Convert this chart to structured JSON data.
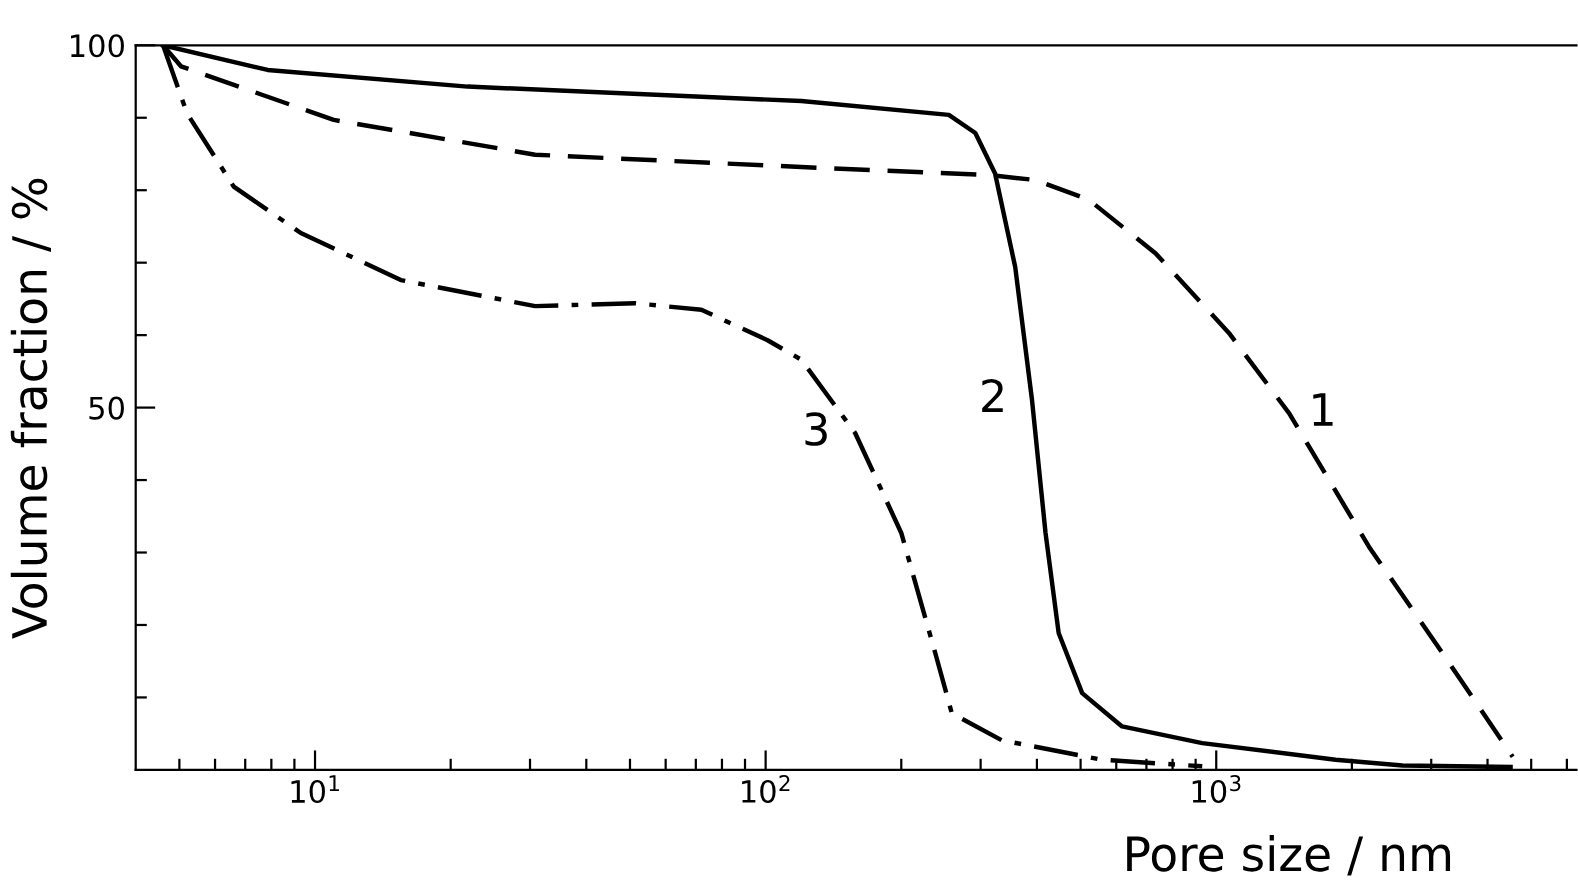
{
  "chart_data": {
    "type": "line",
    "xlabel": "Pore size / nm",
    "ylabel": "Volume fraction / %",
    "log": "x",
    "xlim": [
      4,
      6300
    ],
    "ylim": [
      0,
      100
    ],
    "xticks": [
      {
        "value": 5,
        "label": null
      },
      {
        "value": 6,
        "label": null
      },
      {
        "value": 7,
        "label": null
      },
      {
        "value": 8,
        "label": null
      },
      {
        "value": 9,
        "label": null
      },
      {
        "value": 10,
        "label": "10$^{1}$"
      },
      {
        "value": 20,
        "label": null
      },
      {
        "value": 30,
        "label": null
      },
      {
        "value": 40,
        "label": null
      },
      {
        "value": 50,
        "label": null
      },
      {
        "value": 60,
        "label": null
      },
      {
        "value": 70,
        "label": null
      },
      {
        "value": 80,
        "label": null
      },
      {
        "value": 90,
        "label": null
      },
      {
        "value": 100,
        "label": "10$^{2}$"
      },
      {
        "value": 200,
        "label": null
      },
      {
        "value": 300,
        "label": null
      },
      {
        "value": 400,
        "label": null
      },
      {
        "value": 500,
        "label": null
      },
      {
        "value": 600,
        "label": null
      },
      {
        "value": 700,
        "label": null
      },
      {
        "value": 800,
        "label": null
      },
      {
        "value": 900,
        "label": null
      },
      {
        "value": 1000,
        "label": "10$^{3}$"
      },
      {
        "value": 2000,
        "label": null
      },
      {
        "value": 3000,
        "label": null
      },
      {
        "value": 4000,
        "label": null
      },
      {
        "value": 5000,
        "label": null
      },
      {
        "value": 6000,
        "label": null
      }
    ],
    "yticks": [
      {
        "value": 10,
        "label": null
      },
      {
        "value": 20,
        "label": null
      },
      {
        "value": 30,
        "label": null
      },
      {
        "value": 40,
        "label": null
      },
      50,
      {
        "value": 60,
        "label": null
      },
      {
        "value": 70,
        "label": null
      },
      {
        "value": 80,
        "label": null
      },
      {
        "value": 90,
        "label": null
      },
      100
    ],
    "grid": false,
    "legend": false,
    "marker": "none",
    "series": [
      {
        "name": "1",
        "color": "#000000",
        "line_style": "dashed",
        "x": [
          4.6,
          5.04,
          11,
          30.8,
          120,
          313,
          397,
          521,
          733,
          1067,
          1452,
          2182,
          3180,
          4550
        ],
        "values": [
          100,
          97.1,
          89.7,
          84.9,
          83.2,
          82.1,
          81.4,
          78.7,
          71.3,
          60.3,
          49.2,
          30.8,
          16.1,
          1.8
        ]
      },
      {
        "name": "2",
        "color": "#000000",
        "line_style": "solid",
        "x": [
          4.6,
          7.85,
          21.8,
          120,
          255,
          292,
          323,
          358,
          390,
          418,
          447,
          504,
          618,
          931,
          1840,
          2590,
          4500
        ],
        "values": [
          100,
          96.6,
          94.3,
          92.3,
          90.4,
          87.9,
          82.3,
          69.4,
          51.1,
          32.7,
          18.9,
          10.6,
          6.0,
          3.7,
          1.4,
          0.6,
          0.4
        ]
      },
      {
        "name": "3",
        "color": "#000000",
        "line_style": "dashdot",
        "x": [
          4.6,
          5.2,
          6.6,
          9.3,
          15.5,
          30.8,
          51.3,
          72,
          101,
          120,
          158,
          200,
          238,
          259,
          334,
          558,
          931
        ],
        "values": [
          100,
          90.6,
          80.5,
          74.1,
          67.6,
          64.0,
          64.4,
          63.5,
          59.3,
          56.6,
          46.5,
          32.7,
          16.1,
          7.8,
          4.1,
          1.4,
          0.5
        ]
      }
    ]
  }
}
